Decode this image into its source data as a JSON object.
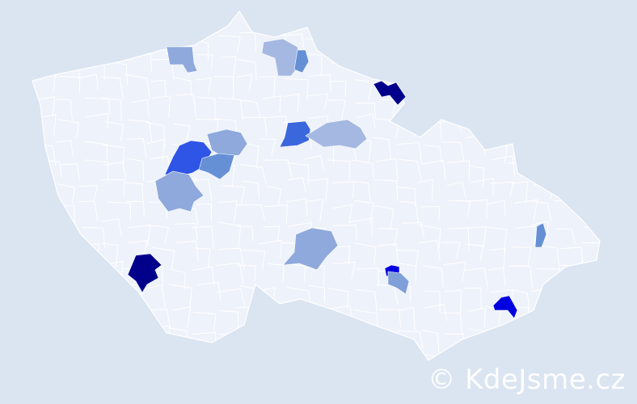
{
  "map": {
    "background_color": "#dbe5f1",
    "base_region_color": "#eef2fa",
    "border_color": "#ffffff",
    "highlighted_regions": [
      {
        "name": "north-west",
        "color": "#8fa9dc"
      },
      {
        "name": "north-liberec",
        "color": "#a4b8e2"
      },
      {
        "name": "north-liberec-east",
        "color": "#6690d6"
      },
      {
        "name": "north-east-naachod",
        "color": "#00008b"
      },
      {
        "name": "central-east-a",
        "color": "#3a67dc"
      },
      {
        "name": "central-east-b",
        "color": "#a4b8e2"
      },
      {
        "name": "prague-west",
        "color": "#2f55e6"
      },
      {
        "name": "prague-east",
        "color": "#8fa9dc"
      },
      {
        "name": "prague-south",
        "color": "#6690d6"
      },
      {
        "name": "central-south-west",
        "color": "#8fa9dc"
      },
      {
        "name": "south-west",
        "color": "#00008b"
      },
      {
        "name": "vysocina",
        "color": "#8fa9dc"
      },
      {
        "name": "brno-north",
        "color": "#0000e0"
      },
      {
        "name": "brno",
        "color": "#7f9fd9"
      },
      {
        "name": "east",
        "color": "#6690d6"
      },
      {
        "name": "south-east",
        "color": "#0000e0"
      }
    ]
  },
  "watermark": "© KdeJsme.cz"
}
